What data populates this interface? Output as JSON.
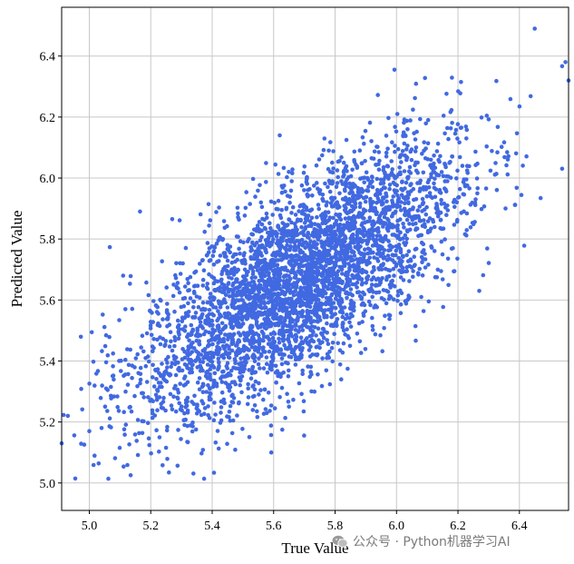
{
  "chart_data": {
    "type": "scatter",
    "xlabel": "True Value",
    "ylabel": "Predicted Value",
    "xlim": [
      4.91,
      6.56
    ],
    "ylim": [
      4.91,
      6.56
    ],
    "xticks": [
      5.0,
      5.2,
      5.4,
      5.6,
      5.8,
      6.0,
      6.2,
      6.4
    ],
    "yticks": [
      5.0,
      5.2,
      5.4,
      5.6,
      5.8,
      6.0,
      6.2,
      6.4
    ],
    "tick_labels": [
      "5.0",
      "5.2",
      "5.4",
      "5.6",
      "5.8",
      "6.0",
      "6.2",
      "6.4"
    ],
    "grid": true,
    "point_color": "#4169E1",
    "approx_point_count": 4000,
    "correlation": 0.72,
    "notable_points": [
      {
        "x": 4.91,
        "y": 5.13
      },
      {
        "x": 4.93,
        "y": 5.22
      },
      {
        "x": 5.0,
        "y": 5.17
      },
      {
        "x": 5.04,
        "y": 5.18
      },
      {
        "x": 5.11,
        "y": 5.68
      },
      {
        "x": 6.45,
        "y": 6.49
      },
      {
        "x": 6.56,
        "y": 6.32
      },
      {
        "x": 6.55,
        "y": 6.38
      },
      {
        "x": 5.65,
        "y": 5.25
      },
      {
        "x": 5.31,
        "y": 5.19
      },
      {
        "x": 5.62,
        "y": 6.14
      },
      {
        "x": 5.92,
        "y": 5.65
      }
    ]
  },
  "watermark": {
    "text": "公众号 · Python机器学习AI",
    "icon": "wechat-icon"
  }
}
